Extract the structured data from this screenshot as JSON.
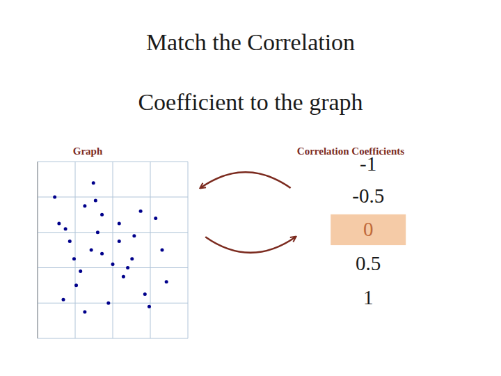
{
  "chart_data": {
    "type": "scatter",
    "title": "Match the Correlation",
    "subtitle": "Coefficient to the graph",
    "annotations": [
      {
        "text": "Graph",
        "color": "#7b2a1e"
      },
      {
        "text": "Correlation Coefficients",
        "color": "#7b2a1e"
      },
      {
        "text": "-1",
        "color": "#1a1a1a"
      },
      {
        "text": "-0.5",
        "color": "#1a1a1a"
      },
      {
        "text": "0",
        "color": "#c0693a"
      },
      {
        "text": "0.5",
        "color": "#1a1a1a"
      },
      {
        "text": "1",
        "color": "#1a1a1a"
      }
    ],
    "x": [
      0.22,
      0.48,
      0.28,
      0.13,
      0.25,
      0.38,
      0.17,
      0.3,
      0.42,
      0.2,
      0.1,
      0.35,
      0.55,
      0.18,
      0.4,
      0.27,
      0.5,
      0.15,
      0.33,
      0.45,
      0.08,
      0.6,
      0.22,
      0.38,
      0.52,
      0.3,
      0.44,
      0.12,
      0.58,
      0.26
    ],
    "values": [
      0.75,
      0.72,
      0.6,
      0.62,
      0.5,
      0.55,
      0.45,
      0.48,
      0.4,
      0.38,
      0.65,
      0.42,
      0.68,
      0.3,
      0.35,
      0.78,
      0.25,
      0.55,
      0.2,
      0.58,
      0.8,
      0.32,
      0.15,
      0.65,
      0.18,
      0.7,
      0.45,
      0.22,
      0.5,
      0.88
    ],
    "color": "#00008b",
    "xlim": [
      0,
      0.7
    ],
    "ylim": [
      0,
      1.0
    ],
    "xticks": [
      0,
      0.175,
      0.35,
      0.525,
      0.7
    ],
    "yticks": [
      0,
      0.2,
      0.4,
      0.6,
      0.8,
      1.0
    ],
    "grid": true,
    "tick_labels": false
  }
}
